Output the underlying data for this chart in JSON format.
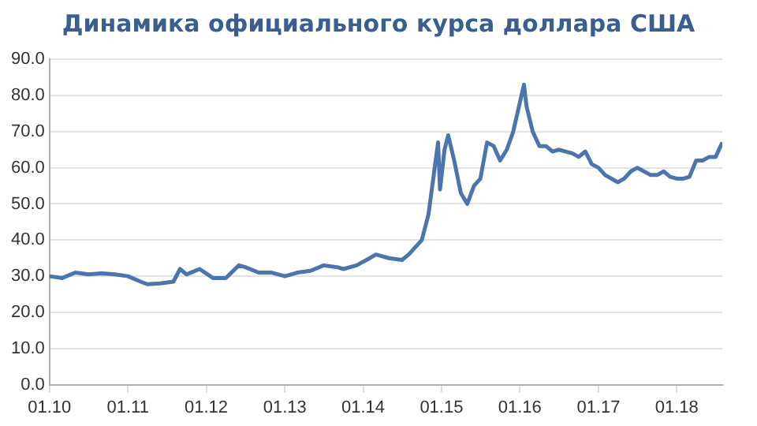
{
  "chart_data": {
    "type": "line",
    "title": "Динамика официального курса доллара США",
    "x": [
      "2010-01",
      "2010-03",
      "2010-05",
      "2010-07",
      "2010-09",
      "2010-11",
      "2011-01",
      "2011-03",
      "2011-04",
      "2011-06",
      "2011-08",
      "2011-09",
      "2011-10",
      "2011-12",
      "2012-02",
      "2012-04",
      "2012-06",
      "2012-07",
      "2012-09",
      "2012-11",
      "2013-01",
      "2013-03",
      "2013-05",
      "2013-07",
      "2013-09",
      "2013-10",
      "2013-12",
      "2014-02",
      "2014-03",
      "2014-05",
      "2014-07",
      "2014-08",
      "2014-10",
      "2014-11",
      "2014-12-16",
      "2014-12-25",
      "2015-01-15",
      "2015-02",
      "2015-03",
      "2015-04",
      "2015-05",
      "2015-06",
      "2015-07",
      "2015-08",
      "2015-09",
      "2015-10",
      "2015-11",
      "2015-12",
      "2016-01-20",
      "2016-02",
      "2016-03",
      "2016-04",
      "2016-05",
      "2016-06",
      "2016-07",
      "2016-08",
      "2016-09",
      "2016-10",
      "2016-11",
      "2016-12",
      "2017-01",
      "2017-02",
      "2017-04",
      "2017-05",
      "2017-06",
      "2017-07",
      "2017-08",
      "2017-09",
      "2017-10",
      "2017-11",
      "2017-12",
      "2018-01",
      "2018-02",
      "2018-03",
      "2018-04",
      "2018-05",
      "2018-06",
      "2018-07",
      "2018-08"
    ],
    "series": [
      {
        "color": "#4a76ad",
        "values": [
          30,
          29.5,
          31,
          30.5,
          30.8,
          30.5,
          30,
          28.5,
          27.8,
          28,
          28.5,
          32,
          30.5,
          32,
          29.5,
          29.5,
          33,
          32.5,
          31,
          31,
          30,
          31,
          31.5,
          33,
          32.5,
          32,
          33,
          35,
          36,
          35,
          34.5,
          36,
          40,
          47,
          67,
          54,
          65,
          69,
          62,
          53,
          50,
          55,
          57,
          67,
          66,
          62,
          65,
          70,
          83,
          77,
          70,
          66,
          66,
          64.5,
          65,
          64.5,
          64,
          63,
          64.5,
          61,
          60,
          58,
          56,
          57,
          59,
          60,
          59,
          58,
          58,
          59,
          57.5,
          57,
          57,
          57.5,
          62,
          62,
          63,
          63,
          67
        ]
      }
    ],
    "xlim": [
      "2010-01",
      "2018-08"
    ],
    "xticks": [
      {
        "value": "2010-01",
        "label": "01.10"
      },
      {
        "value": "2011-01",
        "label": "01.11"
      },
      {
        "value": "2012-01",
        "label": "01.12"
      },
      {
        "value": "2013-01",
        "label": "01.13"
      },
      {
        "value": "2014-01",
        "label": "01.14"
      },
      {
        "value": "2015-01",
        "label": "01.15"
      },
      {
        "value": "2016-01",
        "label": "01.16"
      },
      {
        "value": "2017-01",
        "label": "01.17"
      },
      {
        "value": "2018-01",
        "label": "01.18"
      }
    ],
    "ylim": [
      0,
      90
    ],
    "yticks": [
      {
        "value": 0,
        "label": "0.0"
      },
      {
        "value": 10,
        "label": "10.0"
      },
      {
        "value": 20,
        "label": "20.0"
      },
      {
        "value": 30,
        "label": "30.0"
      },
      {
        "value": 40,
        "label": "40.0"
      },
      {
        "value": 50,
        "label": "50.0"
      },
      {
        "value": 60,
        "label": "60.0"
      },
      {
        "value": 70,
        "label": "70.0"
      },
      {
        "value": 80,
        "label": "80.0"
      },
      {
        "value": 90,
        "label": "90.0"
      }
    ],
    "grid": "y",
    "marker": "none",
    "line_style": "solid"
  }
}
